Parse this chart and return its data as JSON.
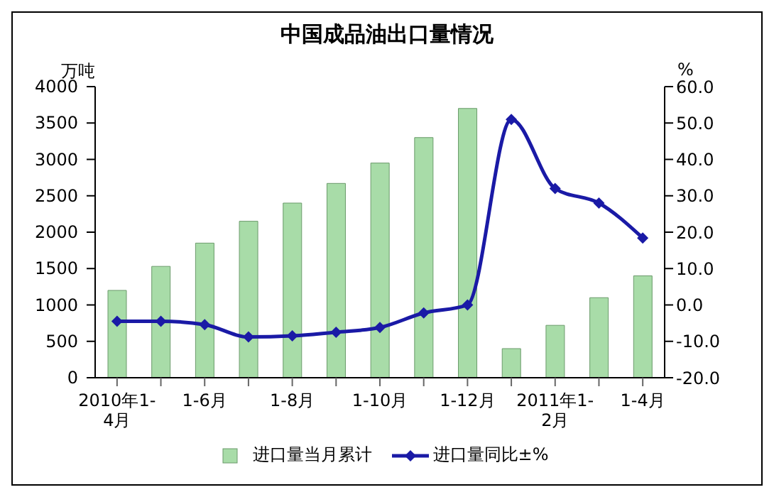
{
  "chart_data": {
    "type": "bar",
    "title": "中国成品油出口量情况",
    "ylabel": "万吨",
    "y2label": "%",
    "categories": [
      "2010年1-4月",
      null,
      "1-6月",
      null,
      "1-8月",
      null,
      "1-10月",
      null,
      "1-12月",
      null,
      "2011年1-2月",
      null,
      "1-4月"
    ],
    "series": [
      {
        "name": "进口量当月累计",
        "color": "#a8dca8",
        "values": [
          1200,
          1530,
          1850,
          2150,
          2400,
          2670,
          2950,
          3300,
          3700,
          400,
          720,
          1100,
          1400
        ]
      },
      {
        "name": "进口量同比±%",
        "type": "line",
        "axis": "y2",
        "color": "#1a1aa6",
        "marker": "diamond",
        "values": [
          -4.5,
          -4.5,
          -5.4,
          -8.8,
          -8.5,
          -7.5,
          -6.2,
          -2.2,
          0.0,
          51,
          32,
          28,
          18.4
        ]
      }
    ],
    "ylim": [
      0,
      4000
    ],
    "yticks": [
      0,
      500,
      1000,
      1500,
      2000,
      2500,
      3000,
      3500,
      4000
    ],
    "y2lim": [
      -20,
      60
    ],
    "y2ticks": [
      {
        "value": -20,
        "label": "-20.0"
      },
      {
        "value": -10,
        "label": "-10.0"
      },
      {
        "value": 0,
        "label": "0.0"
      },
      {
        "value": 10,
        "label": "10.0"
      },
      {
        "value": 20,
        "label": "20.0"
      },
      {
        "value": 30,
        "label": "30.0"
      },
      {
        "value": 40,
        "label": "40.0"
      },
      {
        "value": 50,
        "label": "50.0"
      },
      {
        "value": 60,
        "label": "60.0"
      }
    ],
    "grid": false,
    "legend": "bottom"
  }
}
